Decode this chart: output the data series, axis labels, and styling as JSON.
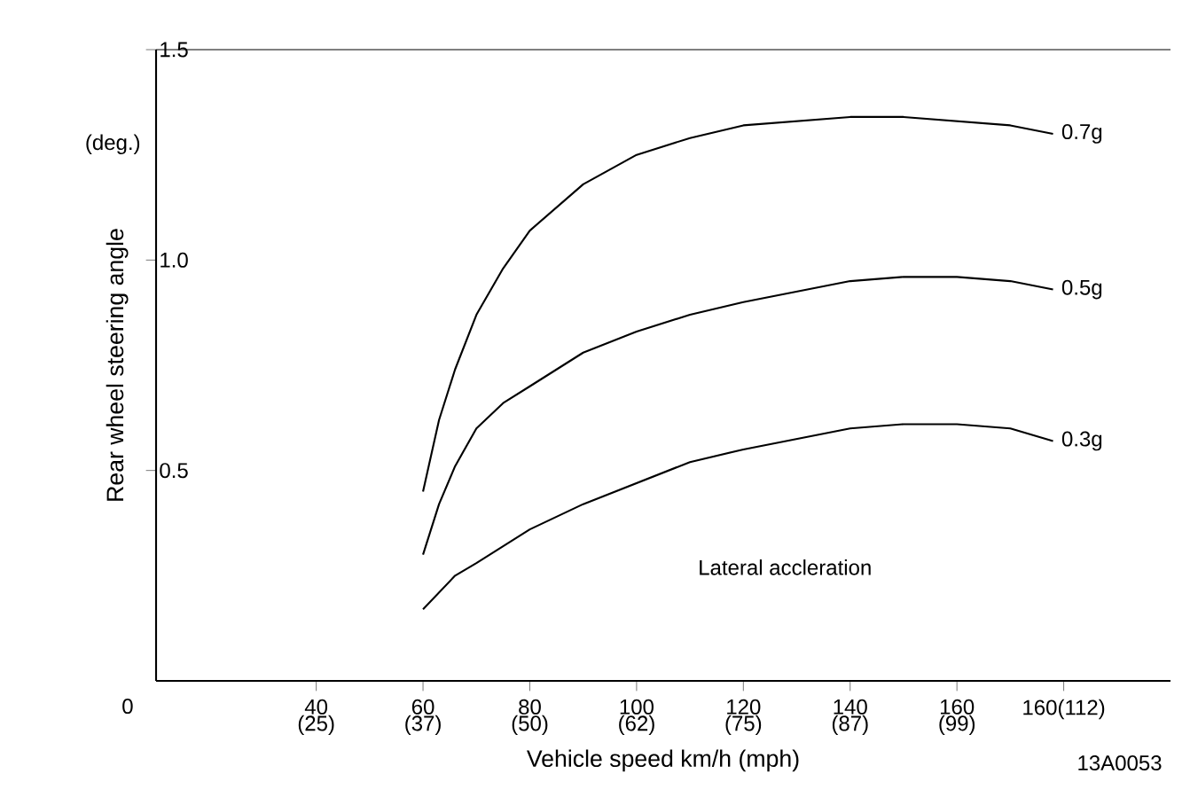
{
  "chart_data": {
    "type": "line",
    "xlabel": "Vehicle speed km/h (mph)",
    "ylabel": "Rear wheel steering angle",
    "xlim": [
      10,
      200
    ],
    "ylim": [
      0,
      1.5
    ],
    "xticks": [
      40,
      60,
      80,
      100,
      120,
      140,
      160,
      {
        "value": 180,
        "label": "160(112)"
      }
    ],
    "x2lim": [
      6.21,
      124.27
    ],
    "x2ticks": [
      {
        "value": 24.85,
        "label": "(25)"
      },
      {
        "value": 37.28,
        "label": "(37)"
      },
      {
        "value": 49.71,
        "label": "(50)"
      },
      {
        "value": 62.14,
        "label": "(62)"
      },
      {
        "value": 74.56,
        "label": "(75)"
      },
      {
        "value": 86.99,
        "label": "(87)"
      },
      {
        "value": 99.42,
        "label": "(99)"
      }
    ],
    "yticks": [
      {
        "value": 0.5,
        "label": "0.5"
      },
      {
        "value": 1.0,
        "label": "1.0"
      },
      {
        "value": 1.5,
        "label": "1.5"
      }
    ],
    "ref_lines": [
      {
        "axis": "y",
        "value": 1.5
      }
    ],
    "marker": "none",
    "line_style": "solid",
    "x": [
      60,
      63,
      66,
      70,
      75,
      80,
      90,
      100,
      110,
      120,
      140,
      150,
      160,
      170,
      178
    ],
    "series": [
      {
        "name": "0.7g",
        "color": "#000000",
        "values": [
          0.45,
          0.62,
          0.74,
          0.87,
          0.98,
          1.07,
          1.18,
          1.25,
          1.29,
          1.32,
          1.34,
          1.34,
          1.33,
          1.32,
          1.3
        ]
      },
      {
        "name": "0.5g",
        "color": "#000000",
        "values": [
          0.3,
          0.42,
          0.51,
          0.6,
          0.66,
          0.7,
          0.78,
          0.83,
          0.87,
          0.9,
          0.95,
          0.96,
          0.96,
          0.95,
          0.93
        ]
      },
      {
        "name": "0.3g",
        "color": "#000000",
        "values": [
          0.17,
          0.21,
          0.25,
          0.28,
          0.32,
          0.36,
          0.42,
          0.47,
          0.52,
          0.55,
          0.6,
          0.61,
          0.61,
          0.6,
          0.57
        ]
      }
    ],
    "annotations": [
      "Lateral accleration",
      "(deg.)",
      "0",
      "13A0053"
    ]
  }
}
